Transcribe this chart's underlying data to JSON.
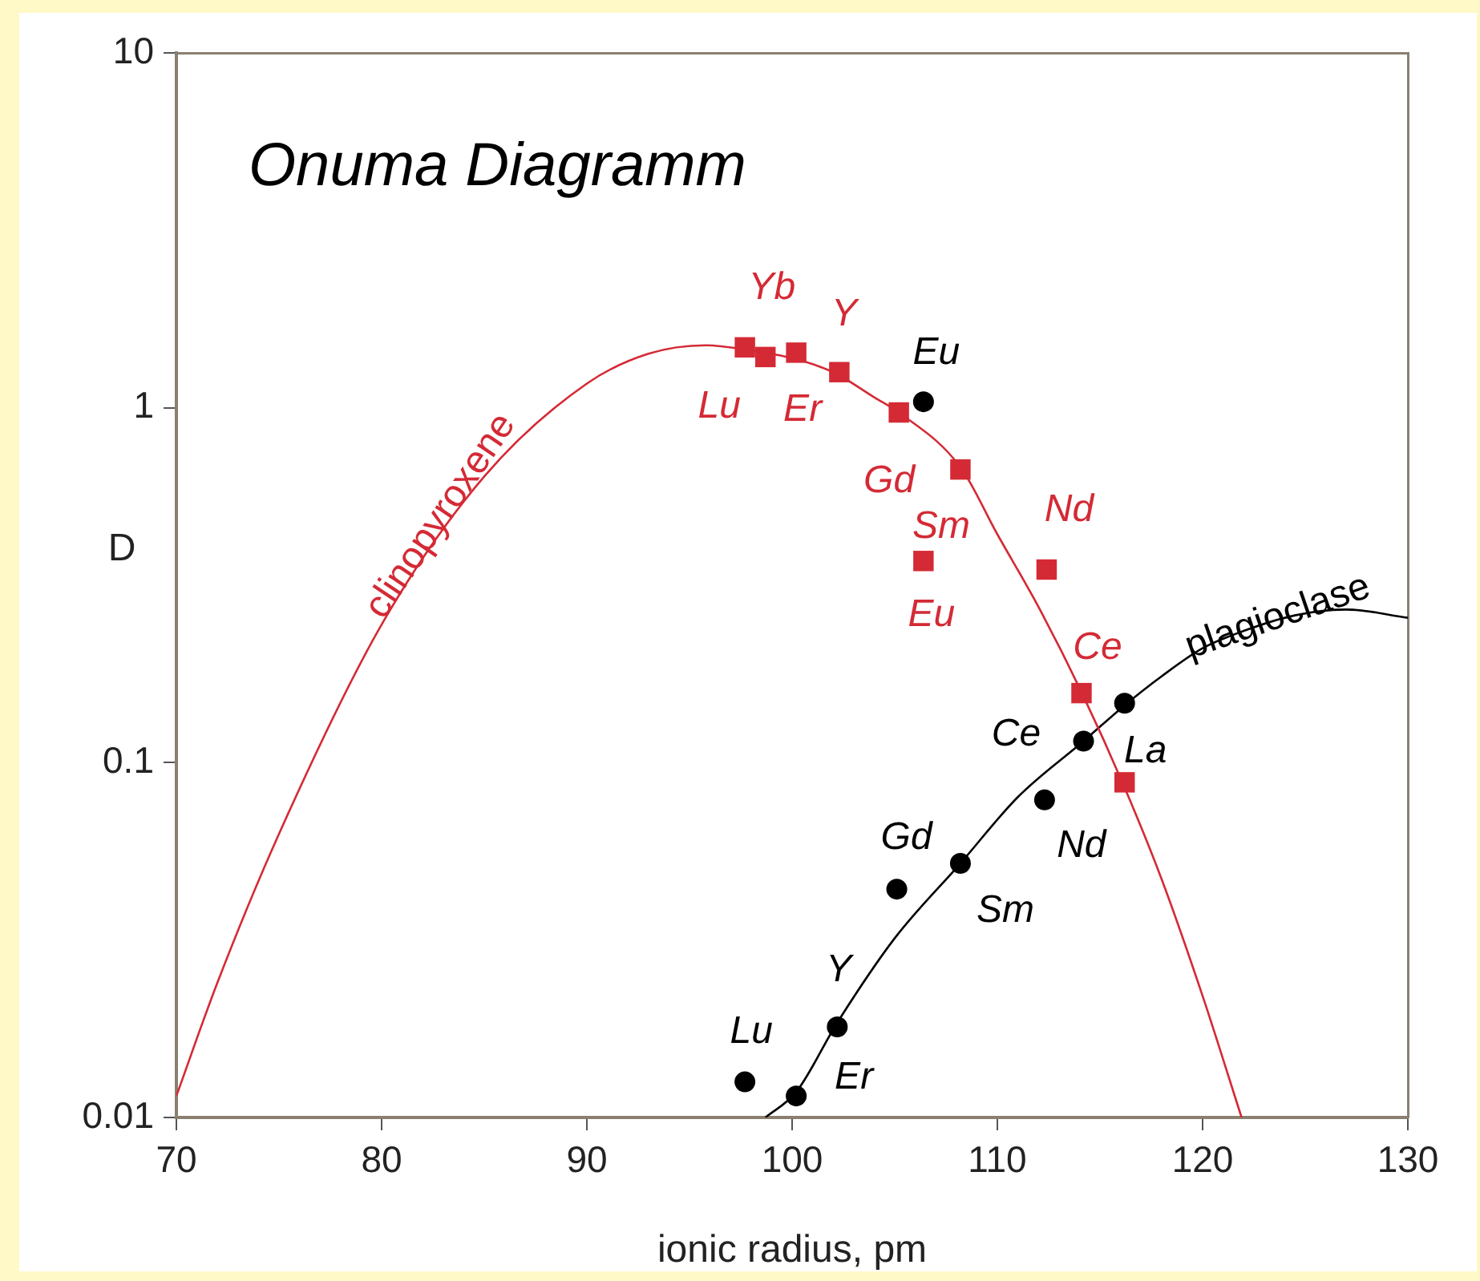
{
  "chart_data": {
    "type": "scatter",
    "title": "Onuma Diagramm",
    "xlabel": "ionic radius, pm",
    "ylabel": "D",
    "log": "y",
    "grid": false,
    "xlim": [
      70,
      130
    ],
    "xticks": [
      70,
      80,
      90,
      100,
      110,
      120,
      130
    ],
    "ylim": [
      0.01,
      10
    ],
    "yticks": [
      0.01,
      0.1,
      1,
      10
    ],
    "series": [
      {
        "name": "clinopyroxene",
        "type": "line",
        "color": "#d42a35",
        "marker": "none",
        "x": [
          70,
          72,
          75,
          80,
          85,
          90,
          93,
          95.8,
          98,
          100,
          102,
          104,
          105.2,
          108.2,
          110,
          112,
          114.1,
          116.2,
          118,
          120,
          121.9
        ],
        "values": [
          0.0115,
          0.024,
          0.063,
          0.245,
          0.64,
          1.17,
          1.42,
          1.5,
          1.45,
          1.38,
          1.26,
          1.07,
          0.97,
          0.68,
          0.44,
          0.275,
          0.158,
          0.085,
          0.047,
          0.022,
          0.01
        ]
      },
      {
        "name": "plagioclase",
        "type": "line",
        "color": "#000000",
        "marker": "none",
        "x": [
          98.7,
          100.2,
          102.2,
          105,
          108.2,
          111,
          114.2,
          116.2,
          118,
          120,
          122,
          124.5,
          127,
          130
        ],
        "values": [
          0.01,
          0.0118,
          0.0185,
          0.032,
          0.052,
          0.08,
          0.115,
          0.145,
          0.175,
          0.21,
          0.235,
          0.26,
          0.27,
          0.256
        ]
      },
      {
        "color": "#d42a35",
        "marker": "square",
        "x": [
          97.7,
          98.7,
          100.2,
          102.3,
          105.2,
          108.2,
          106.4,
          112.4,
          114.1,
          116.2
        ],
        "values": [
          1.48,
          1.39,
          1.43,
          1.26,
          0.97,
          0.67,
          0.37,
          0.35,
          0.157,
          0.088
        ],
        "value_labels": [
          "Lu",
          "Yb",
          "Er",
          "Y",
          "Gd",
          "Sm",
          "Eu",
          "Nd",
          "Ce",
          null
        ]
      },
      {
        "color": "#000000",
        "marker": "circle",
        "x": [
          106.4,
          114.2,
          116.2,
          112.3,
          108.2,
          105.1,
          102.2,
          97.7,
          100.2
        ],
        "values": [
          1.04,
          0.115,
          0.147,
          0.0785,
          0.052,
          0.044,
          0.018,
          0.0126,
          0.0115
        ],
        "value_labels": [
          "Eu",
          "Ce",
          "La",
          "Nd",
          "Sm",
          "Gd",
          "Y",
          "Lu",
          "Er"
        ]
      }
    ]
  }
}
